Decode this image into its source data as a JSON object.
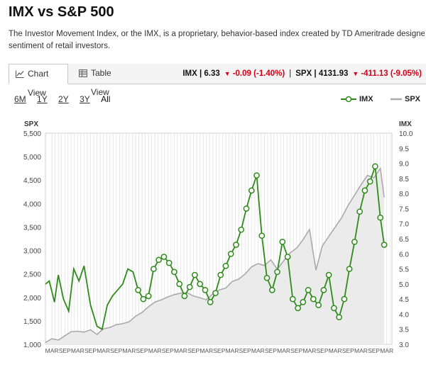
{
  "page": {
    "title": "IMX vs S&P 500",
    "description_line1": "The Investor Movement Index, or the IMX, is a proprietary, behavior-based index created by TD Ameritrade designed to indicate the",
    "description_line2": "sentiment of retail investors."
  },
  "tabs": [
    {
      "label": "Chart View",
      "icon": "line-chart-icon",
      "active": true
    },
    {
      "label": "Table View",
      "icon": "table-icon",
      "active": false
    }
  ],
  "quotes": {
    "imx": {
      "label": "IMX | 6.33",
      "change": "-0.09 (-1.40%)"
    },
    "spx": {
      "label": "SPX | 4131.93",
      "change": "-411.13 (-9.05%)"
    },
    "down_color": "#d0021b"
  },
  "ranges": [
    "6M",
    "1Y",
    "2Y",
    "3Y",
    "All"
  ],
  "active_range": "All",
  "legend": {
    "imx": "IMX",
    "spx": "SPX"
  },
  "colors": {
    "imx": "#2e8b1a",
    "spx": "#aaaaaa",
    "spx_fill": "#ebebeb",
    "grid": "#e2e2e2"
  },
  "chart_data": {
    "type": "line",
    "left_axis": {
      "label": "SPX",
      "ticks": [
        "5,500",
        "5,000",
        "4,500",
        "4,000",
        "3,500",
        "3,000",
        "2,500",
        "2,000",
        "1,500",
        "1,000"
      ],
      "range": [
        1000,
        5500
      ]
    },
    "right_axis": {
      "label": "IMX",
      "ticks": [
        "10.0",
        "9.5",
        "9.0",
        "8.5",
        "8.0",
        "7.5",
        "7.0",
        "6.5",
        "6.0",
        "5.5",
        "5.0",
        "4.5",
        "4.0",
        "3.5",
        "3.0"
      ],
      "range": [
        3.0,
        10.0
      ]
    },
    "x_tick_labels": [
      "MAR",
      "SEP",
      "MAR",
      "SEP",
      "MAR",
      "SEP",
      "MAR",
      "SEP",
      "MAR",
      "SEP",
      "MAR",
      "SEP",
      "MAR",
      "SEP",
      "MAR",
      "SEP",
      "MAR",
      "SEP",
      "MAR",
      "SEP",
      "MAR",
      "SEP",
      "MAR",
      "SEP",
      "MAR",
      "SEP",
      "MAR"
    ],
    "x_tick_semesters": [
      0.5,
      1.5,
      2.5,
      3.5,
      4.5,
      5.5,
      6.5,
      7.5,
      8.5,
      9.5,
      10.5,
      11.5,
      12.5,
      13.5,
      14.5,
      15.5,
      16.5,
      17.5,
      18.5,
      19.5,
      20.5,
      21.5,
      22.5,
      23.5,
      24.5,
      25.5,
      26.5
    ],
    "x_range_semesters": [
      0,
      26.9
    ],
    "series": [
      {
        "name": "SPX",
        "style": "area",
        "x": [
          0,
          0.5,
          1,
          1.5,
          2,
          2.5,
          3,
          3.5,
          4,
          4.5,
          5,
          5.5,
          6,
          6.5,
          7,
          7.5,
          8,
          8.5,
          9,
          9.5,
          10,
          10.5,
          11,
          11.5,
          12,
          12.5,
          13,
          13.5,
          14,
          14.5,
          15,
          15.5,
          16,
          16.5,
          17,
          17.5,
          18,
          18.5,
          19,
          19.5,
          20,
          20.5,
          21,
          21.5,
          22,
          22.5,
          23,
          23.5,
          24,
          24.5,
          25,
          25.5,
          26,
          26.3
        ],
        "values": [
          1040,
          1120,
          1090,
          1180,
          1270,
          1280,
          1260,
          1310,
          1210,
          1330,
          1360,
          1420,
          1440,
          1480,
          1600,
          1680,
          1800,
          1900,
          1950,
          2010,
          2060,
          2090,
          2100,
          2030,
          1990,
          1950,
          2080,
          2160,
          2200,
          2340,
          2390,
          2500,
          2650,
          2720,
          2680,
          2800,
          2600,
          2780,
          2950,
          3050,
          3230,
          3450,
          2580,
          3100,
          3300,
          3500,
          3700,
          3960,
          4180,
          4400,
          4600,
          4550,
          4750,
          4130
        ]
      },
      {
        "name": "IMX",
        "style": "line-markers",
        "x": [
          0,
          0.3,
          0.7,
          1.0,
          1.4,
          1.8,
          2.2,
          2.6,
          3.0,
          3.5,
          4.0,
          4.4,
          4.8,
          5.2,
          5.6,
          6.0,
          6.4,
          6.8,
          7.2,
          7.6,
          8.0,
          8.4,
          8.8,
          9.2,
          9.6,
          10.0,
          10.4,
          10.8,
          11.2,
          11.6,
          12.0,
          12.4,
          12.8,
          13.2,
          13.6,
          14.0,
          14.4,
          14.8,
          15.2,
          15.6,
          16.0,
          16.4,
          16.8,
          17.2,
          17.6,
          18.0,
          18.4,
          18.8,
          19.2,
          19.6,
          20.0,
          20.4,
          20.8,
          21.2,
          21.6,
          22.0,
          22.4,
          22.8,
          23.2,
          23.6,
          24.0,
          24.4,
          24.8,
          25.2,
          25.6,
          26.0,
          26.3
        ],
        "marker_from_index": 18,
        "values": [
          5.0,
          5.1,
          4.4,
          5.3,
          4.5,
          4.1,
          5.5,
          5.1,
          5.6,
          4.3,
          3.6,
          3.5,
          4.3,
          4.6,
          4.8,
          5.0,
          5.5,
          5.4,
          4.8,
          4.5,
          4.6,
          5.5,
          5.8,
          5.9,
          5.7,
          5.4,
          5.0,
          4.6,
          4.9,
          5.3,
          5.0,
          4.8,
          4.4,
          4.7,
          5.3,
          5.6,
          6.0,
          6.3,
          6.8,
          7.5,
          8.1,
          8.6,
          6.6,
          5.2,
          4.8,
          5.4,
          6.4,
          5.9,
          4.5,
          4.2,
          4.4,
          4.8,
          4.5,
          4.3,
          4.8,
          5.3,
          4.2,
          3.9,
          4.5,
          5.5,
          6.4,
          7.4,
          8.1,
          8.4,
          8.9,
          7.2,
          6.3
        ]
      }
    ]
  }
}
